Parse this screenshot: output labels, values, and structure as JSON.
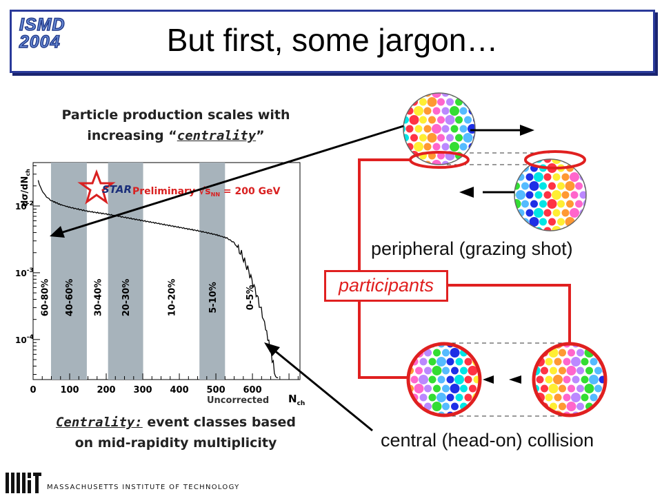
{
  "slide": {
    "title": "But first, some jargon…",
    "logo_line1": "ISMD",
    "logo_line2": "2004",
    "footer": "MASSACHUSETTS INSTITUTE OF TECHNOLOGY"
  },
  "notes": {
    "top_line1": "Particle production scales with",
    "top_line2_a": "increasing “",
    "top_line2_b": "centrality",
    "top_line2_c": "”",
    "bottom_line1_a": "Centrality:",
    "bottom_line1_b": " event classes based",
    "bottom_line2": "on mid-rapidity multiplicity"
  },
  "diagram": {
    "peripheral_label": "peripheral (grazing shot)",
    "central_label": "central (head-on) collision",
    "participants_label": "participants"
  },
  "chart_data": {
    "type": "area",
    "logo_text": "STAR",
    "preliminary_label": "Preliminary √s",
    "preliminary_sub": "NN",
    "preliminary_value": " = 200 GeV",
    "uncorrected_label": "Uncorrected",
    "xlabel": "N",
    "xlabel_sub": "ch",
    "ylabel": "dσ/dN",
    "ylabel_sub": "ch",
    "xlim": [
      0,
      730
    ],
    "ylim_log10": [
      -4.6,
      -1.35
    ],
    "xticks": [
      0,
      100,
      200,
      300,
      400,
      500,
      600
    ],
    "yticks": [
      {
        "exp": -2,
        "label": "10",
        "sup": "-2"
      },
      {
        "exp": -3,
        "label": "10",
        "sup": "-3"
      },
      {
        "exp": -4,
        "label": "10",
        "sup": "-4"
      }
    ],
    "centrality_classes": [
      {
        "label": "60-80%",
        "xmin": 14,
        "xmax": 49,
        "shaded": false
      },
      {
        "label": "40-60%",
        "xmin": 49,
        "xmax": 147,
        "shaded": true
      },
      {
        "label": "30-40%",
        "xmin": 147,
        "xmax": 205,
        "shaded": false
      },
      {
        "label": "20-30%",
        "xmin": 205,
        "xmax": 301,
        "shaded": true
      },
      {
        "label": "10-20%",
        "xmin": 301,
        "xmax": 455,
        "shaded": false
      },
      {
        "label": "5-10%",
        "xmin": 455,
        "xmax": 525,
        "shaded": true
      },
      {
        "label": "0-5%",
        "xmin": 525,
        "xmax": 660,
        "shaded": false
      }
    ],
    "curve": [
      [
        14,
        -1.62
      ],
      [
        20,
        -1.72
      ],
      [
        30,
        -1.82
      ],
      [
        40,
        -1.88
      ],
      [
        50,
        -1.92
      ],
      [
        75,
        -1.98
      ],
      [
        100,
        -2.02
      ],
      [
        150,
        -2.08
      ],
      [
        200,
        -2.12
      ],
      [
        250,
        -2.17
      ],
      [
        300,
        -2.22
      ],
      [
        350,
        -2.27
      ],
      [
        400,
        -2.32
      ],
      [
        450,
        -2.37
      ],
      [
        500,
        -2.43
      ],
      [
        530,
        -2.48
      ],
      [
        550,
        -2.55
      ],
      [
        570,
        -2.72
      ],
      [
        590,
        -2.98
      ],
      [
        610,
        -3.3
      ],
      [
        630,
        -3.68
      ],
      [
        645,
        -4.05
      ],
      [
        660,
        -4.45
      ],
      [
        670,
        -4.6
      ]
    ]
  },
  "colors": {
    "title_border": "#2a3a9a",
    "red": "#e02020",
    "band_fill": "#a7b3bb"
  }
}
